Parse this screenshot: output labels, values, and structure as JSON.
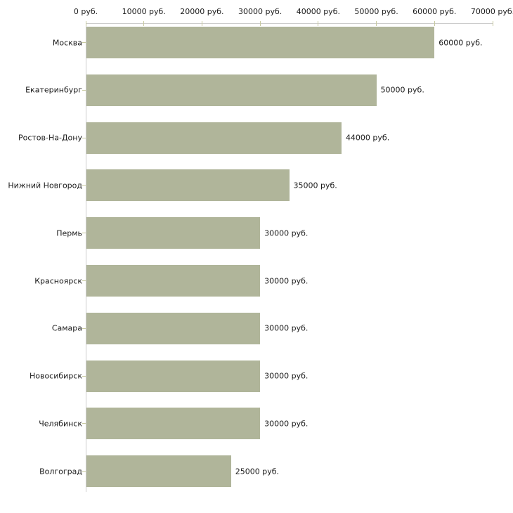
{
  "chart_data": {
    "type": "bar",
    "orientation": "horizontal",
    "title": "",
    "categories": [
      "Москва",
      "Екатеринбург",
      "Ростов-На-Дону",
      "Нижний Новгород",
      "Пермь",
      "Красноярск",
      "Самара",
      "Новосибирск",
      "Челябинск",
      "Волгоград"
    ],
    "values": [
      60000,
      50000,
      44000,
      35000,
      30000,
      30000,
      30000,
      30000,
      30000,
      25000
    ],
    "value_labels": [
      "60000 руб.",
      "50000 руб.",
      "44000 руб.",
      "35000 руб.",
      "30000 руб.",
      "30000 руб.",
      "30000 руб.",
      "30000 руб.",
      "30000 руб.",
      "25000 руб."
    ],
    "x_ticks": [
      {
        "value": 0,
        "label": "0 руб."
      },
      {
        "value": 10000,
        "label": "10000 руб."
      },
      {
        "value": 20000,
        "label": "20000 руб."
      },
      {
        "value": 30000,
        "label": "30000 руб."
      },
      {
        "value": 40000,
        "label": "40000 руб."
      },
      {
        "value": 50000,
        "label": "50000 руб."
      },
      {
        "value": 60000,
        "label": "60000 руб."
      },
      {
        "value": 70000,
        "label": "70000 руб."
      }
    ],
    "xlim": [
      0,
      70000
    ],
    "xlabel": "",
    "ylabel": "",
    "grid": false,
    "legend": false,
    "colors": {
      "bar": "#b0b59a",
      "axis_line": "#cccccc",
      "tick_mark": "#c8caa0",
      "text": "#1a1a1a",
      "background": "#ffffff"
    }
  }
}
